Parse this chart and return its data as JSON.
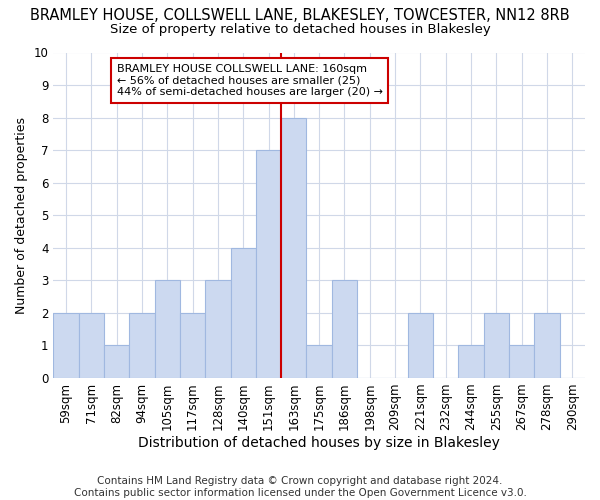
{
  "title": "BRAMLEY HOUSE, COLLSWELL LANE, BLAKESLEY, TOWCESTER, NN12 8RB",
  "subtitle": "Size of property relative to detached houses in Blakesley",
  "xlabel": "Distribution of detached houses by size in Blakesley",
  "ylabel": "Number of detached properties",
  "categories": [
    "59sqm",
    "71sqm",
    "82sqm",
    "94sqm",
    "105sqm",
    "117sqm",
    "128sqm",
    "140sqm",
    "151sqm",
    "163sqm",
    "175sqm",
    "186sqm",
    "198sqm",
    "209sqm",
    "221sqm",
    "232sqm",
    "244sqm",
    "255sqm",
    "267sqm",
    "278sqm",
    "290sqm"
  ],
  "values": [
    2,
    2,
    1,
    2,
    3,
    2,
    3,
    4,
    7,
    8,
    1,
    3,
    0,
    0,
    2,
    0,
    1,
    2,
    1,
    2,
    0
  ],
  "bar_color": "#ccd9f0",
  "bar_edge_color": "#a0b8e0",
  "vline_x": 9.0,
  "vline_color": "#cc0000",
  "annotation_text": "BRAMLEY HOUSE COLLSWELL LANE: 160sqm\n← 56% of detached houses are smaller (25)\n44% of semi-detached houses are larger (20) →",
  "annotation_box_facecolor": "#ffffff",
  "annotation_box_edgecolor": "#cc0000",
  "ylim": [
    0,
    10
  ],
  "yticks": [
    0,
    1,
    2,
    3,
    4,
    5,
    6,
    7,
    8,
    9,
    10
  ],
  "footer": "Contains HM Land Registry data © Crown copyright and database right 2024.\nContains public sector information licensed under the Open Government Licence v3.0.",
  "bg_color": "#ffffff",
  "axes_bg_color": "#ffffff",
  "grid_color": "#d0d8e8",
  "title_fontsize": 10.5,
  "subtitle_fontsize": 9.5,
  "xlabel_fontsize": 10,
  "ylabel_fontsize": 9,
  "tick_fontsize": 8.5,
  "footer_fontsize": 7.5
}
